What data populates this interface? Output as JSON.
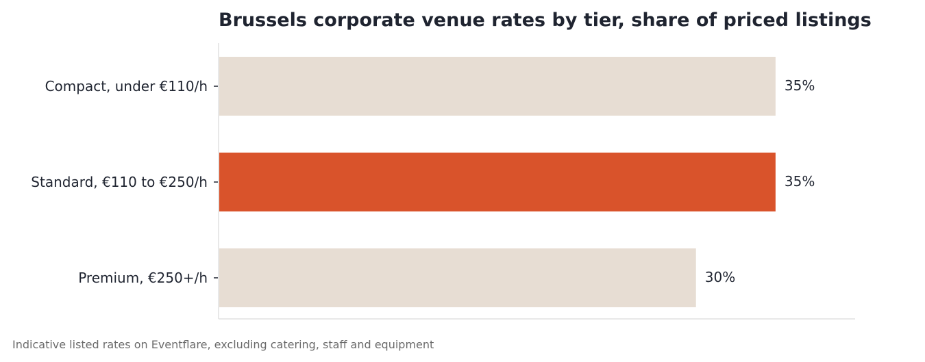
{
  "chart_data": {
    "type": "bar",
    "orientation": "horizontal",
    "title": "Brussels corporate venue rates by tier, share of priced listings",
    "categories": [
      "Compact, under €110/h",
      "Standard, €110 to €250/h",
      "Premium, €250+/h"
    ],
    "values": [
      35,
      35,
      30
    ],
    "value_labels": [
      "35%",
      "35%",
      "30%"
    ],
    "unit": "%",
    "xlim": [
      0,
      40
    ],
    "highlight_index": 1,
    "xlabel": "",
    "ylabel": "",
    "grid": false,
    "legend": "none",
    "footnote": "Indicative listed rates on Eventflare, excluding catering, staff and equipment"
  },
  "colors": {
    "bar_default": "#e7ddd3",
    "bar_highlight": "#d9532b",
    "axis": "#e0e0e0",
    "text": "#1f2430",
    "footnote": "#6b6b6b"
  }
}
